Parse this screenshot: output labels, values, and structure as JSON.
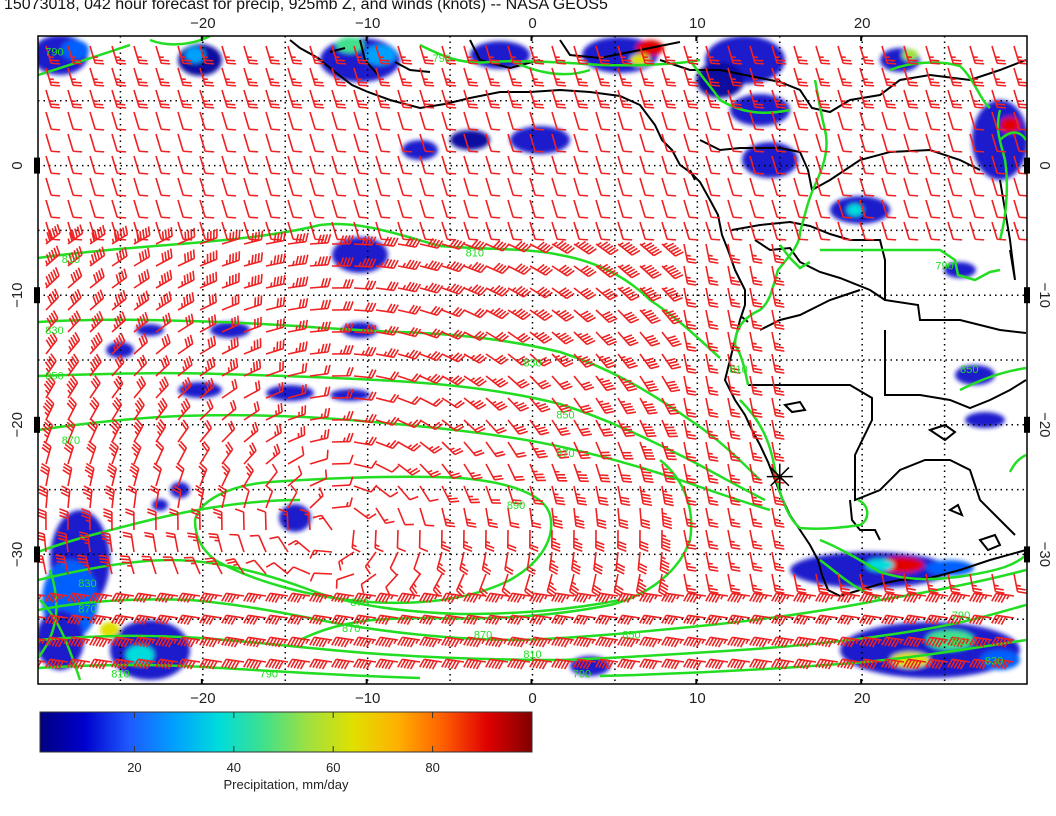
{
  "title": "15073018, 042 hour forecast for precip, 925mb Z, and winds (knots) -- NASA GEOS5",
  "map": {
    "lon_range": [
      -30,
      30
    ],
    "lat_range": [
      -40,
      10
    ],
    "lon_ticks": [
      -20,
      -10,
      0,
      10,
      20
    ],
    "lon_tick_labels": [
      "−20",
      "−10",
      "0",
      "10",
      "20"
    ],
    "lat_ticks": [
      0,
      -10,
      -20,
      -30
    ],
    "lat_tick_labels": [
      "0",
      "−10",
      "−20",
      "−30"
    ],
    "grid": "dotted",
    "contour_color": "#22dd22",
    "wind_barb_color": "#ee2222",
    "coast_color": "#000000",
    "marker": {
      "lon": 15,
      "lat": -24,
      "symbol": "asterisk"
    }
  },
  "contour_labels": [
    {
      "text": "790",
      "lon": -29,
      "lat": 8.5
    },
    {
      "text": "790",
      "lon": -5.5,
      "lat": 8
    },
    {
      "text": "810",
      "lon": -28,
      "lat": -7.5
    },
    {
      "text": "810",
      "lon": -3.5,
      "lat": -7
    },
    {
      "text": "830",
      "lon": -29,
      "lat": -13
    },
    {
      "text": "830",
      "lon": 0,
      "lat": -15.5
    },
    {
      "text": "850",
      "lon": -29,
      "lat": -16.5
    },
    {
      "text": "850",
      "lon": 2,
      "lat": -19.5
    },
    {
      "text": "850",
      "lon": 6,
      "lat": -36.5
    },
    {
      "text": "870",
      "lon": -28,
      "lat": -21.5
    },
    {
      "text": "870",
      "lon": 2,
      "lat": -22.5
    },
    {
      "text": "870",
      "lon": -11,
      "lat": -36
    },
    {
      "text": "870",
      "lon": -3,
      "lat": -36.5
    },
    {
      "text": "890",
      "lon": -1,
      "lat": -26.5
    },
    {
      "text": "870",
      "lon": -10.5,
      "lat": -34
    },
    {
      "text": "790",
      "lon": 26,
      "lat": -35
    },
    {
      "text": "810",
      "lon": 26,
      "lat": -37
    },
    {
      "text": "830",
      "lon": 28,
      "lat": -38.5
    },
    {
      "text": "810",
      "lon": 0,
      "lat": -38
    },
    {
      "text": "790",
      "lon": 3,
      "lat": -39.5
    },
    {
      "text": "830",
      "lon": -27,
      "lat": -32.5
    },
    {
      "text": "870",
      "lon": -27,
      "lat": -34.5
    },
    {
      "text": "810",
      "lon": -25,
      "lat": -39.5
    },
    {
      "text": "790",
      "lon": -16,
      "lat": -39.5
    },
    {
      "text": "810",
      "lon": 12.5,
      "lat": -16
    },
    {
      "text": "850",
      "lon": 26.5,
      "lat": -16
    },
    {
      "text": "790",
      "lon": 25,
      "lat": -8
    }
  ],
  "colorbar": {
    "title": "Precipitation, mm/day",
    "min": 1,
    "max": 100,
    "ticks": [
      20,
      40,
      60,
      80
    ],
    "tick_labels": [
      "20",
      "40",
      "60",
      "80"
    ],
    "colors": [
      "#000080",
      "#0000cd",
      "#1e5aff",
      "#00a0ff",
      "#00dcdc",
      "#40e08c",
      "#a0e040",
      "#e0e000",
      "#ffb000",
      "#ff6000",
      "#e00000",
      "#800000"
    ]
  }
}
